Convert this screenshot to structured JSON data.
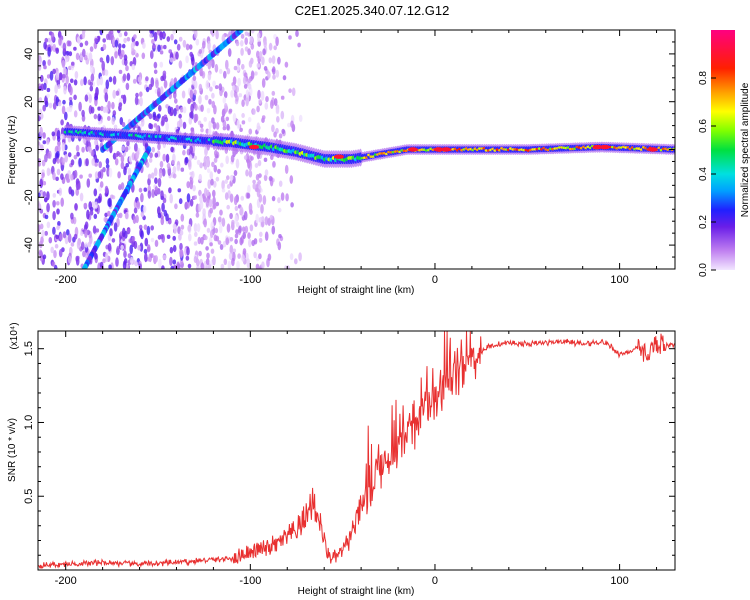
{
  "title": "C2E1.2025.340.07.12.G12",
  "chart_data": [
    {
      "type": "heatmap",
      "xlabel": "Height of straight line (km)",
      "ylabel": "Frequency (Hz)",
      "xlim": [
        -215,
        130
      ],
      "ylim": [
        -50,
        50
      ],
      "xticks": [
        -200,
        -100,
        0,
        100
      ],
      "yticks": [
        -40,
        -20,
        0,
        20,
        40
      ],
      "features": {
        "main_trace": [
          [
            -150,
            5
          ],
          [
            -130,
            4
          ],
          [
            -110,
            3
          ],
          [
            -90,
            1
          ],
          [
            -75,
            -1
          ],
          [
            -60,
            -4
          ],
          [
            -45,
            -4
          ],
          [
            -30,
            -2
          ],
          [
            -15,
            0
          ],
          [
            0,
            0
          ],
          [
            50,
            0
          ],
          [
            90,
            1
          ],
          [
            130,
            0
          ]
        ],
        "diagonal_up": [
          [
            -180,
            0
          ],
          [
            -105,
            50
          ]
        ],
        "diagonal_down": [
          [
            -155,
            0
          ],
          [
            -190,
            -50
          ]
        ]
      },
      "colorbar": {
        "label": "Normalized spectral amplitude",
        "range": [
          0,
          1
        ],
        "ticks": [
          "0.0",
          "0.2",
          "0.4",
          "0.6",
          "0.8"
        ],
        "tick_values": [
          0.0,
          0.2,
          0.4,
          0.6,
          0.8
        ]
      }
    },
    {
      "type": "line",
      "xlabel": "Height of straight line (km)",
      "ylabel": "SNR (10 * v/v)",
      "exponent_label": "(x10⁴)",
      "xlim": [
        -215,
        130
      ],
      "ylim": [
        0,
        1.62
      ],
      "xticks": [
        -200,
        -100,
        0,
        100
      ],
      "yticks": [
        0.5,
        1.0,
        1.5
      ],
      "ytick_labels": [
        "0.5",
        "1.0",
        "1.5"
      ],
      "color": "#e83030",
      "series": [
        {
          "x": [
            -215,
            -200,
            -180,
            -160,
            -140,
            -120,
            -110,
            -100,
            -90,
            -80,
            -75,
            -70,
            -66,
            -62,
            -58,
            -55,
            -50,
            -45,
            -40,
            -35,
            -30,
            -25,
            -20,
            -15,
            -10,
            -5,
            0,
            5,
            10,
            15,
            20,
            25,
            30,
            40,
            50,
            60,
            70,
            80,
            90,
            95,
            100,
            110,
            115,
            120,
            125,
            130
          ],
          "y": [
            0.03,
            0.04,
            0.05,
            0.04,
            0.05,
            0.07,
            0.08,
            0.12,
            0.15,
            0.22,
            0.26,
            0.35,
            0.48,
            0.3,
            0.1,
            0.08,
            0.12,
            0.25,
            0.4,
            0.55,
            0.7,
            0.78,
            0.85,
            0.92,
            1.0,
            1.08,
            1.17,
            1.25,
            1.32,
            1.38,
            1.44,
            1.48,
            1.52,
            1.54,
            1.53,
            1.54,
            1.55,
            1.53,
            1.55,
            1.52,
            1.46,
            1.5,
            1.46,
            1.55,
            1.52,
            1.52
          ]
        }
      ]
    }
  ]
}
